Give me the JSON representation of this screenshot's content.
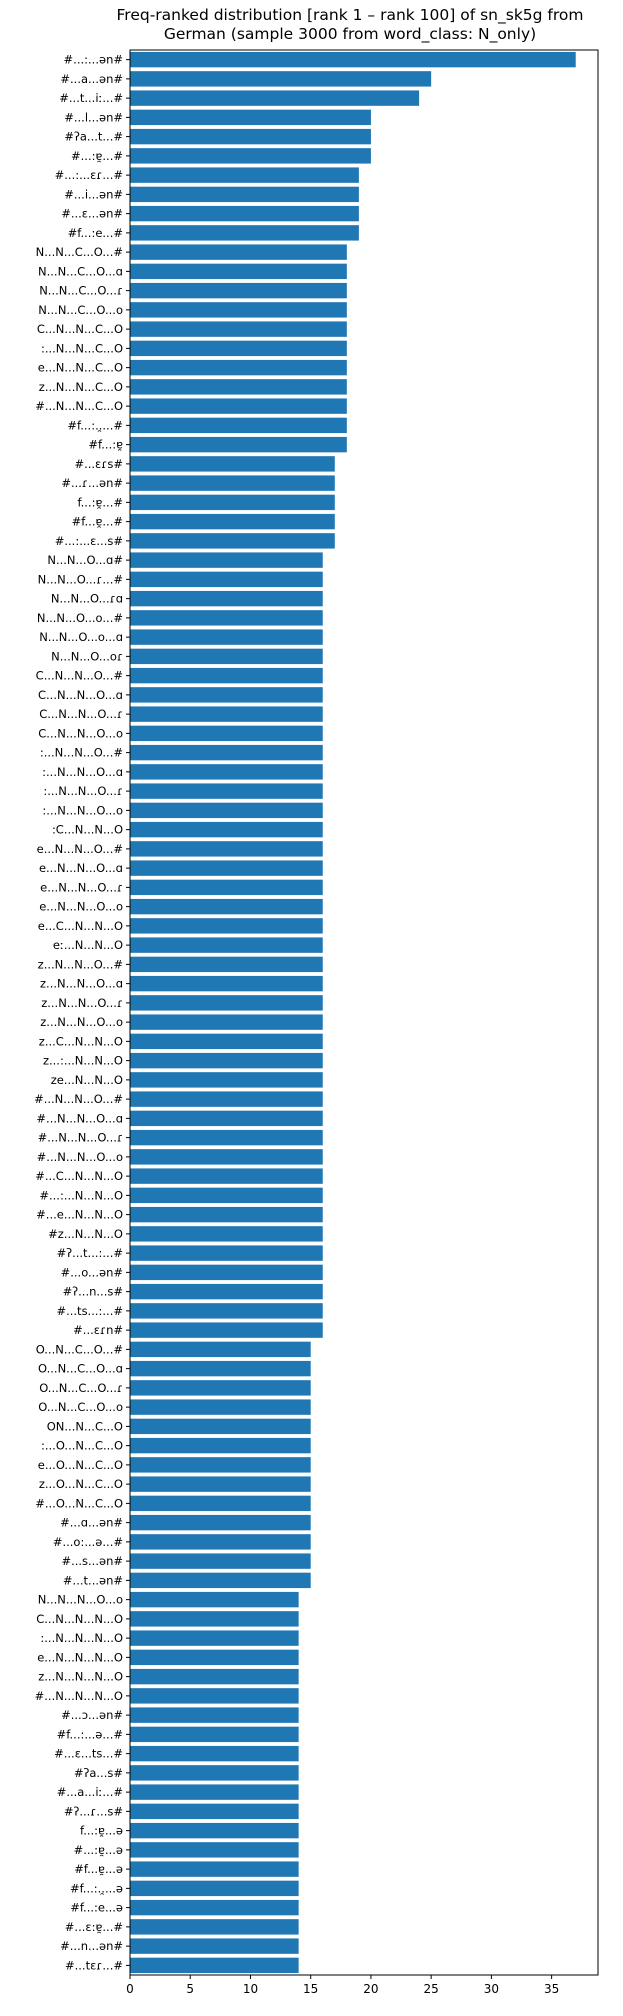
{
  "chart_data": {
    "type": "bar",
    "orientation": "horizontal",
    "title_lines": [
      "Freq-ranked distribution [rank 1 – rank 100] of sn_sk5g from",
      "German (sample 3000 from word_class: N_only)"
    ],
    "xlabel": "",
    "ylabel": "",
    "xlim": [
      0,
      38.85
    ],
    "xticks": [
      "0",
      "5",
      "10",
      "15",
      "20",
      "25",
      "30",
      "35"
    ],
    "bar_color": "#1f77b4",
    "grid": false,
    "legend": "none",
    "categories": [
      "#...:...ən#",
      "#...a...ən#",
      "#...t...iː...#",
      "#...l...ən#",
      "#ʔa...t...#",
      "#...:ɐ̯...#",
      "#...:...ɛɾ...#",
      "#...i...ən#",
      "#...ɛ...ən#",
      "#f...:e...#",
      "N...N...C...O...#",
      "N...N...C...O...ɑ",
      "N...N...C...O...ɾ",
      "N...N...C...O...o",
      "C...N...N...C...O",
      ":...N...N...C...O",
      "e...N...N...C...O",
      "z...N...N...C...O",
      "#...N...N...C...O",
      "#f...:..̯...#",
      "#f...:ɐ̯",
      "#...ɛɾs#",
      "#...ɾ...ən#",
      "f...:ɐ̯...#",
      "#f...ɐ̯...#",
      "#...:...ɛ...s#",
      "N...N...O...ɑ#",
      "N...N...O...ɾ...#",
      "N...N...O...ɾɑ",
      "N...N...O...o...#",
      "N...N...O...o...ɑ",
      "N...N...O...oɾ",
      "C...N...N...O...#",
      "C...N...N...O...ɑ",
      "C...N...N...O...ɾ",
      "C...N...N...O...o",
      ":...N...N...O...#",
      ":...N...N...O...ɑ",
      ":...N...N...O...ɾ",
      ":...N...N...O...o",
      ":C...N...N...O",
      "e...N...N...O...#",
      "e...N...N...O...ɑ",
      "e...N...N...O...ɾ",
      "e...N...N...O...o",
      "e...C...N...N...O",
      "eː...N...N...O",
      "z...N...N...O...#",
      "z...N...N...O...ɑ",
      "z...N...N...O...ɾ",
      "z...N...N...O...o",
      "z...C...N...N...O",
      "z...:...N...N...O",
      "ze...N...N...O",
      "#...N...N...O...#",
      "#...N...N...O...ɑ",
      "#...N...N...O...ɾ",
      "#...N...N...O...o",
      "#...C...N...N...O",
      "#...:...N...N...O",
      "#...e...N...N...O",
      "#z...N...N...O",
      "#ʔ...t...:...#",
      "#...o...ən#",
      "#ʔ...n...s#",
      "#...ts...:...#",
      "#...ɛɾn#",
      "O...N...C...O...#",
      "O...N...C...O...ɑ",
      "O...N...C...O...ɾ",
      "O...N...C...O...o",
      "ON...N...C...O",
      ":...O...N...C...O",
      "e...O...N...C...O",
      "z...O...N...C...O",
      "#...O...N...C...O",
      "#...ɑ...ən#",
      "#...o:...ə...#",
      "#...s...ən#",
      "#...t...ən#",
      "N...N...N...O...o",
      "C...N...N...N...O",
      ":...N...N...N...O",
      "e...N...N...N...O",
      "z...N...N...N...O",
      "#...N...N...N...O",
      "#...ɔ...ən#",
      "#f...:...ə...#",
      "#...ɛ...ts...#",
      "#ʔa...s#",
      "#...a...iː...#",
      "#ʔ...ɾ...s#",
      "f...:ɐ̯...ə",
      "#...:ɐ̯...ə",
      "#f...ɐ̯...ə",
      "#f...:..̯...ə",
      "#f...:e...ə",
      "#...ɛ:ɐ̯...#",
      "#...n...ən#",
      "#...tɛɾ...#"
    ],
    "values": [
      37,
      25,
      24,
      20,
      20,
      20,
      19,
      19,
      19,
      19,
      18,
      18,
      18,
      18,
      18,
      18,
      18,
      18,
      18,
      18,
      18,
      17,
      17,
      17,
      17,
      17,
      16,
      16,
      16,
      16,
      16,
      16,
      16,
      16,
      16,
      16,
      16,
      16,
      16,
      16,
      16,
      16,
      16,
      16,
      16,
      16,
      16,
      16,
      16,
      16,
      16,
      16,
      16,
      16,
      16,
      16,
      16,
      16,
      16,
      16,
      16,
      16,
      16,
      16,
      16,
      16,
      16,
      15,
      15,
      15,
      15,
      15,
      15,
      15,
      15,
      15,
      15,
      15,
      15,
      15,
      14,
      14,
      14,
      14,
      14,
      14,
      14,
      14,
      14,
      14,
      14,
      14,
      14,
      14,
      14,
      14,
      14,
      14,
      14,
      14
    ]
  }
}
